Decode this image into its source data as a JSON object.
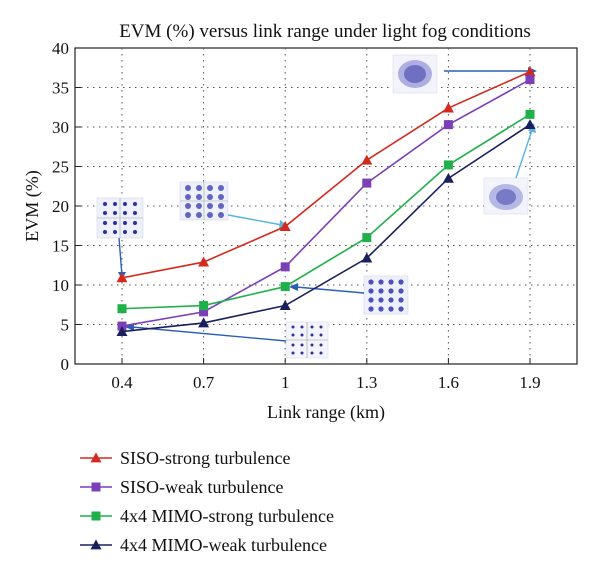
{
  "chart_data": {
    "type": "line",
    "title": "EVM (%) versus link range under light fog conditions",
    "xlabel": "Link range (km)",
    "ylabel": "EVM (%)",
    "x": [
      0.4,
      0.7,
      1.0,
      1.3,
      1.6,
      1.9
    ],
    "x_tick_labels": [
      "0.4",
      "0.7",
      "1",
      "1.3",
      "1.6",
      "1.9"
    ],
    "ylim": [
      0,
      40
    ],
    "y_ticks": [
      0,
      5,
      10,
      15,
      20,
      25,
      30,
      35,
      40
    ],
    "grid": true,
    "legend_position": "bottom",
    "series": [
      {
        "name": "SISO-strong turbulence",
        "color": "#d42a1e",
        "marker": "triangle",
        "values": [
          10.9,
          12.9,
          17.4,
          25.8,
          32.4,
          37.0
        ]
      },
      {
        "name": "SISO-weak turbulence",
        "color": "#7b3fb8",
        "marker": "square",
        "values": [
          4.8,
          6.6,
          12.3,
          22.9,
          30.3,
          36.0
        ]
      },
      {
        "name": "4x4 MIMO-strong turbulence",
        "color": "#1fb04a",
        "marker": "square",
        "values": [
          7.0,
          7.4,
          9.8,
          16.0,
          25.2,
          31.6
        ]
      },
      {
        "name": "4x4 MIMO-weak turbulence",
        "color": "#1a1f5e",
        "marker": "triangle",
        "values": [
          4.1,
          5.2,
          7.4,
          13.4,
          23.5,
          30.3
        ]
      }
    ]
  }
}
